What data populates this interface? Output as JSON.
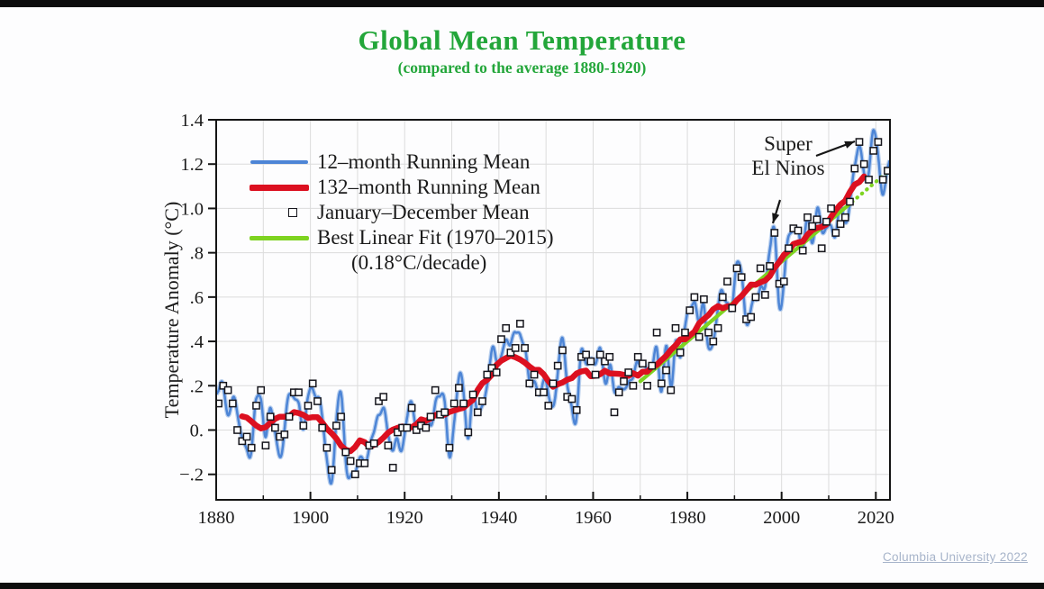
{
  "page": {
    "title": "Global Mean Temperature",
    "subtitle": "(compared to the average 1880-1920)",
    "credit": "Columbia University 2022"
  },
  "annotation": {
    "line1": "Super",
    "line2": "El Ninos"
  },
  "legend": {
    "items": [
      {
        "label": "12–month Running Mean",
        "swatch": "line",
        "color": "#4d85d6"
      },
      {
        "label": "132–month Running Mean",
        "swatch": "line",
        "color": "#dc1020"
      },
      {
        "label": "January–December Mean",
        "swatch": "open-square",
        "color": "#16161d"
      },
      {
        "label": "Best Linear Fit (1970–2015)",
        "swatch": "line",
        "color": "#7ed321"
      }
    ],
    "extra_line": "(0.18°C/decade)"
  },
  "chart_data": {
    "type": "line",
    "title": "Global Mean Temperature (compared to the average 1880-1920)",
    "xlabel": "",
    "ylabel": "Temperature Anomaly (°C)",
    "xlim": [
      1880,
      2023
    ],
    "ylim": [
      -0.315,
      1.4
    ],
    "grid": true,
    "grid_x_step_years": 10,
    "grid_y_step_deg": 0.2,
    "legend_position": "upper-left",
    "x_tick_years": [
      1880,
      1900,
      1920,
      1940,
      1960,
      1980,
      2000,
      2020
    ],
    "x_tick_labels": [
      "1880",
      "1900",
      "1920",
      "1940",
      "1960",
      "1980",
      "2000",
      "2020"
    ],
    "x_minor_tick_years": [
      1890,
      1910,
      1930,
      1950,
      1970,
      1990,
      2010
    ],
    "y_tick_values": [
      1.4,
      1.2,
      1.0,
      0.8,
      0.6,
      0.4,
      0.2,
      0.0,
      -0.2
    ],
    "y_tick_labels": [
      "1.4",
      "1.2",
      "1.0",
      ".8",
      ".6",
      ".4",
      ".2",
      "0.",
      "−.2"
    ],
    "series": [
      {
        "name": "12-month Running Mean",
        "type": "line",
        "color": "#4d85d6",
        "derivation": "annual_mean interpolated monthly plus ENSO-scale oscillation"
      },
      {
        "name": "132-month Running Mean",
        "type": "line",
        "color": "#dc1020",
        "derivation": "11-year centered moving average of annual_mean",
        "plot_years": [
          1885,
          2017
        ]
      },
      {
        "name": "January-December Mean",
        "type": "scatter",
        "marker": "open-square",
        "color": "#16161d"
      },
      {
        "name": "Best Linear Fit (1970-2015)",
        "type": "line",
        "color": "#7ed321",
        "slope_c_per_decade": 0.18,
        "value_at_1970": 0.22,
        "solid_range": [
          1970,
          2015
        ],
        "dotted_range": [
          2015,
          2022.8
        ]
      }
    ],
    "annual_mean": {
      "start_year": 1880,
      "end_year": 2022,
      "values": [
        0.12,
        0.2,
        0.18,
        0.12,
        0.0,
        -0.05,
        -0.03,
        -0.08,
        0.11,
        0.18,
        -0.07,
        0.06,
        0.01,
        -0.03,
        -0.02,
        0.06,
        0.17,
        0.17,
        0.02,
        0.11,
        0.21,
        0.13,
        0.01,
        -0.08,
        -0.18,
        0.02,
        0.06,
        -0.1,
        -0.14,
        -0.2,
        -0.15,
        -0.15,
        -0.07,
        -0.06,
        0.13,
        0.15,
        -0.07,
        -0.17,
        -0.01,
        0.01,
        0.01,
        0.1,
        0.0,
        0.02,
        0.01,
        0.06,
        0.18,
        0.07,
        0.08,
        -0.08,
        0.12,
        0.19,
        0.12,
        -0.01,
        0.16,
        0.08,
        0.13,
        0.25,
        0.28,
        0.26,
        0.41,
        0.46,
        0.35,
        0.37,
        0.48,
        0.37,
        0.21,
        0.25,
        0.17,
        0.17,
        0.11,
        0.21,
        0.29,
        0.36,
        0.15,
        0.14,
        0.09,
        0.33,
        0.34,
        0.31,
        0.25,
        0.34,
        0.31,
        0.33,
        0.08,
        0.17,
        0.22,
        0.26,
        0.2,
        0.33,
        0.3,
        0.2,
        0.29,
        0.44,
        0.21,
        0.27,
        0.18,
        0.46,
        0.35,
        0.44,
        0.54,
        0.6,
        0.42,
        0.59,
        0.44,
        0.4,
        0.46,
        0.6,
        0.67,
        0.55,
        0.73,
        0.69,
        0.5,
        0.51,
        0.6,
        0.73,
        0.61,
        0.74,
        0.89,
        0.66,
        0.67,
        0.82,
        0.91,
        0.9,
        0.81,
        0.96,
        0.92,
        0.95,
        0.82,
        0.94,
        1.0,
        0.89,
        0.93,
        0.96,
        1.03,
        1.18,
        1.3,
        1.2,
        1.13,
        1.26,
        1.3,
        1.13,
        1.17
      ]
    },
    "annotations": [
      {
        "text": "Super El Ninos",
        "points_to_years": [
          1998,
          2016
        ]
      }
    ]
  }
}
